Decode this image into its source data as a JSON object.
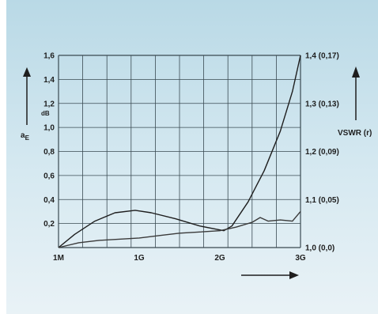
{
  "chart_data": {
    "type": "line",
    "y_left": {
      "label_main": "a",
      "label_sub": "E",
      "unit": "dB",
      "ticks": [
        "0,2",
        "0,4",
        "0,6",
        "0,8",
        "1,0",
        "1,2",
        "1,4",
        "1,6"
      ],
      "ylim": [
        0,
        1.6
      ]
    },
    "y_right": {
      "label": "VSWR (r)",
      "ticks": [
        "1,0 (0,0)",
        "1,1 (0,05)",
        "1,2 (0,09)",
        "1,3 (0,13)",
        "1,4 (0,17)"
      ],
      "ylim": [
        1.0,
        1.4
      ]
    },
    "x_ticks": [
      "1M",
      "1G",
      "2G",
      "3G"
    ],
    "x_range_ghz": [
      0,
      3
    ],
    "grid": true,
    "series": [
      {
        "axis": "left",
        "color": "#1e1e1e",
        "x": [
          0,
          0.2,
          0.45,
          0.7,
          0.95,
          1.15,
          1.45,
          1.75,
          2.05,
          2.15,
          2.35,
          2.55,
          2.75,
          2.9,
          3.0
        ],
        "y": [
          0.0,
          0.11,
          0.22,
          0.29,
          0.31,
          0.29,
          0.24,
          0.18,
          0.14,
          0.18,
          0.38,
          0.64,
          0.97,
          1.3,
          1.6
        ]
      },
      {
        "axis": "left",
        "color": "#3a3a3a",
        "x": [
          0,
          0.25,
          0.5,
          0.75,
          1.0,
          1.25,
          1.5,
          1.75,
          2.0,
          2.2,
          2.4,
          2.5,
          2.6,
          2.75,
          2.9,
          3.0
        ],
        "y": [
          0.0,
          0.04,
          0.06,
          0.07,
          0.08,
          0.1,
          0.12,
          0.13,
          0.14,
          0.17,
          0.21,
          0.25,
          0.22,
          0.23,
          0.22,
          0.3
        ]
      }
    ]
  }
}
